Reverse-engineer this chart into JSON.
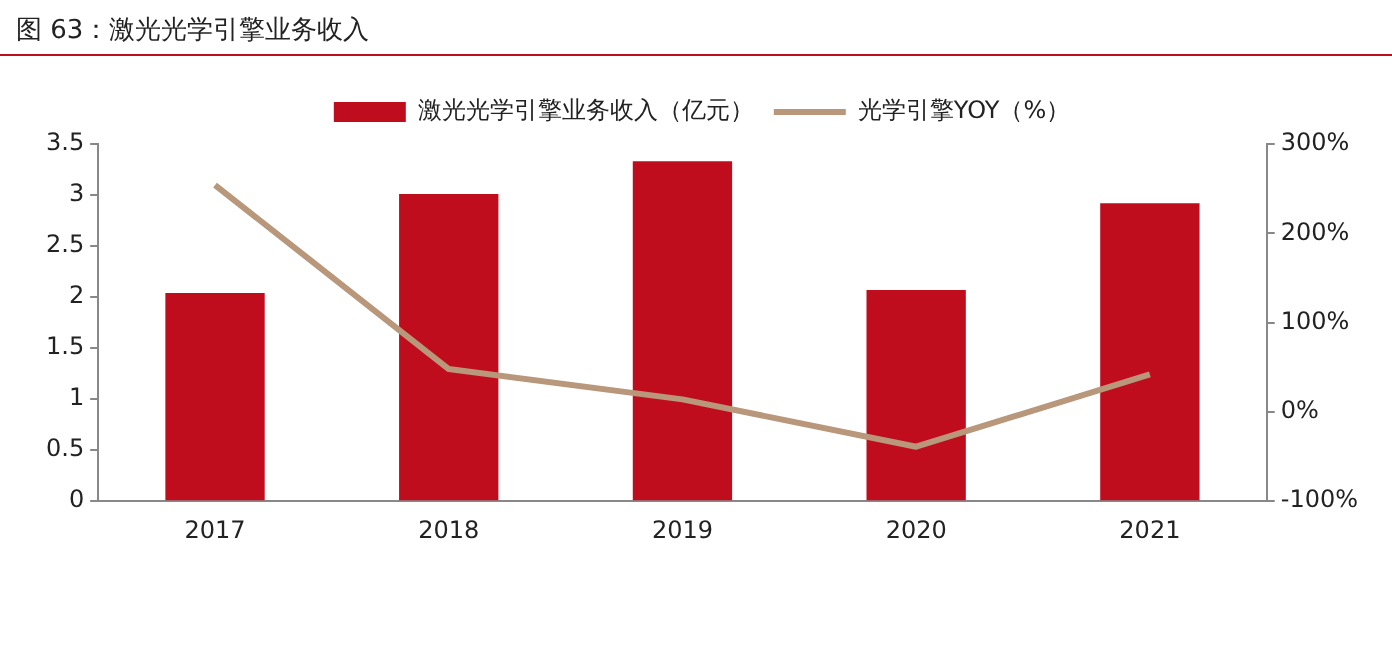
{
  "chart_data": {
    "type": "bar",
    "title": "图 63：激光光学引擎业务收入",
    "categories": [
      "2017",
      "2018",
      "2019",
      "2020",
      "2021"
    ],
    "series": [
      {
        "name": "激光光学引擎业务收入（亿元）",
        "color": "#c00d1e",
        "values": [
          2.04,
          3.01,
          3.33,
          2.07,
          2.92
        ]
      },
      {
        "name": "光学引擎YOY（%）",
        "type": "line",
        "axis": "y2",
        "color": "#b8977a",
        "values": [
          254,
          48,
          14,
          -39,
          42
        ]
      }
    ],
    "ylim": [
      0,
      3.5
    ],
    "yticks": [
      0,
      0.5,
      1,
      1.5,
      2,
      2.5,
      3,
      3.5
    ],
    "y2lim": [
      -100,
      300
    ],
    "y2ticks": [
      {
        "value": -100,
        "label": "-100%"
      },
      {
        "value": 0,
        "label": "0%"
      },
      {
        "value": 100,
        "label": "100%"
      },
      {
        "value": 200,
        "label": "200%"
      },
      {
        "value": 300,
        "label": "300%"
      }
    ],
    "grid": false,
    "legend": "top",
    "marker": "none"
  }
}
